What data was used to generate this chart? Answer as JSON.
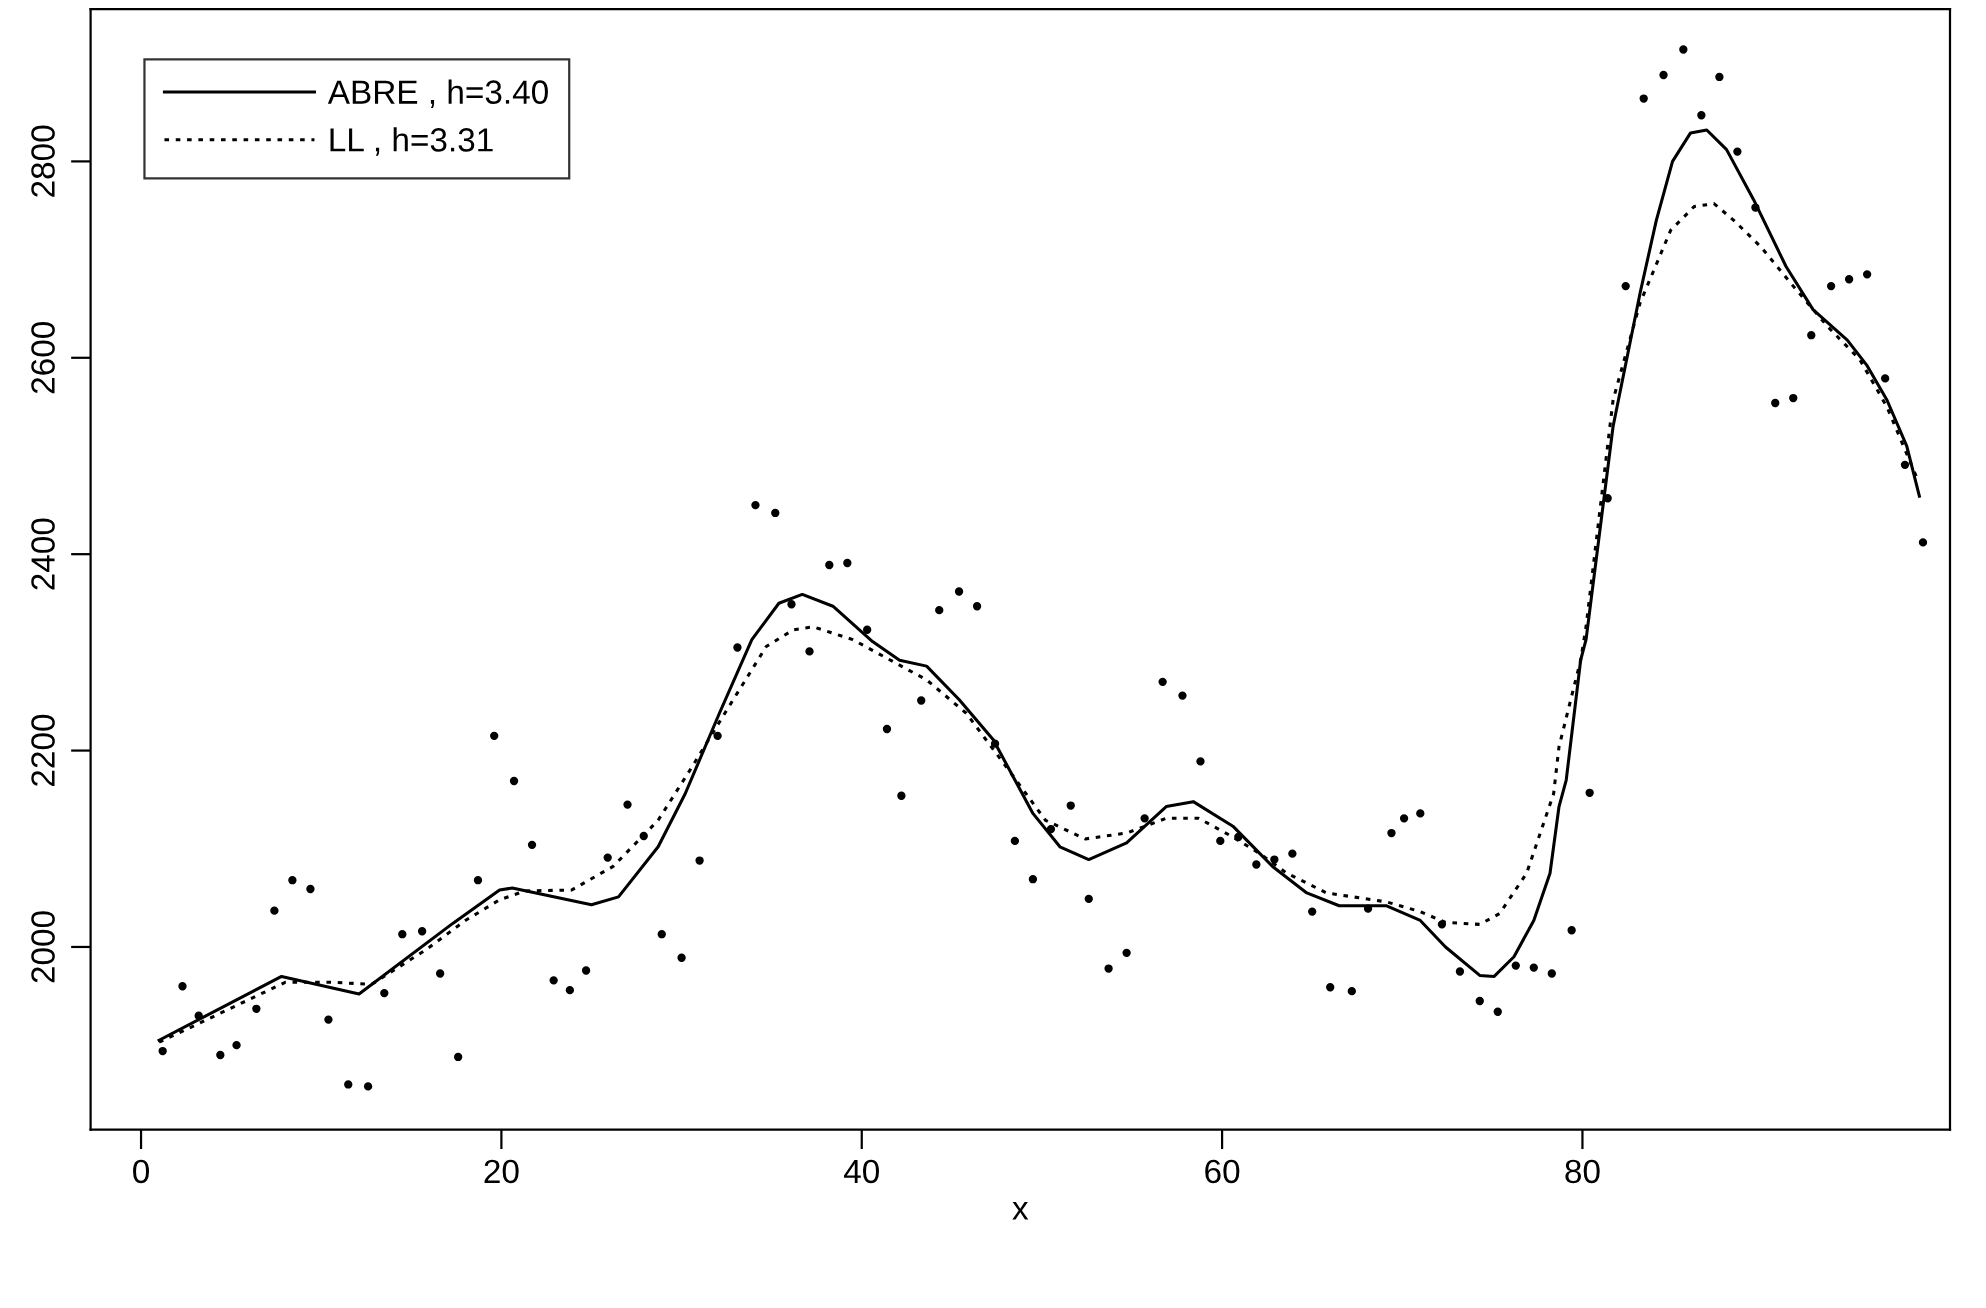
{
  "chart_data": {
    "type": "scatter",
    "xlabel": "x",
    "xlim": [
      -2.8,
      100.4
    ],
    "ylim": [
      1814,
      2955
    ],
    "xticks": [
      0,
      20,
      40,
      60,
      80
    ],
    "yticks": [
      2000,
      2200,
      2400,
      2600,
      2800
    ],
    "grid": false,
    "legend": "top left",
    "series": [
      {
        "color": "#000000",
        "marker": "circle",
        "x": [
          1.2,
          2.3,
          3.2,
          4.4,
          5.3,
          6.4,
          7.4,
          8.4,
          9.4,
          10.4,
          11.5,
          12.6,
          13.5,
          14.5,
          15.6,
          16.6,
          17.6,
          18.7,
          19.6,
          20.7,
          21.7,
          22.9,
          23.8,
          24.7,
          25.9,
          27.0,
          27.9,
          28.9,
          30.0,
          31.0,
          32.0,
          33.1,
          34.1,
          35.2,
          36.1,
          37.1,
          38.2,
          39.2,
          40.3,
          41.4,
          42.2,
          43.3,
          44.3,
          45.4,
          46.4,
          47.4,
          48.5,
          49.5,
          50.5,
          51.6,
          52.6,
          53.7,
          54.7,
          55.7,
          56.7,
          57.8,
          58.8,
          59.9,
          60.9,
          61.9,
          62.9,
          63.9,
          65.0,
          66.0,
          67.2,
          68.1,
          69.4,
          70.1,
          71.0,
          72.2,
          73.2,
          74.3,
          75.3,
          76.3,
          77.3,
          78.3,
          79.4,
          80.4,
          81.4,
          82.4,
          83.4,
          84.5,
          85.6,
          86.6,
          87.6,
          88.6,
          89.6,
          90.7,
          91.7,
          92.7,
          93.8,
          94.8,
          95.8,
          96.8,
          97.9,
          98.9
        ],
        "values": [
          1894,
          1960,
          1930,
          1890,
          1900,
          1937,
          2037,
          2068,
          2059,
          1926,
          1860,
          1858,
          1953,
          2013,
          2016,
          1973,
          1888,
          2068,
          2215,
          2169,
          2104,
          1966,
          1956,
          1976,
          2091,
          2145,
          2113,
          2013,
          1989,
          2088,
          2215,
          2305,
          2450,
          2442,
          2349,
          2301,
          2389,
          2391,
          2323,
          2222,
          2154,
          2251,
          2343,
          2362,
          2347,
          2207,
          2108,
          2069,
          2120,
          2144,
          2049,
          1978,
          1994,
          2131,
          2270,
          2256,
          2189,
          2108,
          2112,
          2084,
          2089,
          2095,
          2036,
          1959,
          1955,
          2039,
          2116,
          2131,
          2136,
          2023,
          1975,
          1945,
          1934,
          1981,
          1979,
          1973,
          2017,
          2157,
          2457,
          2673,
          2864,
          2888,
          2914,
          2847,
          2886,
          2810,
          2753,
          2554,
          2559,
          2623,
          2673,
          2680,
          2685,
          2579,
          2491,
          2412
        ]
      },
      {
        "type": "line",
        "name": "ABRE , h=3.40",
        "color": "#000000",
        "line_style": "solid",
        "marker": "none",
        "x": [
          1.0,
          7.8,
          12.1,
          17.3,
          19.9,
          20.6,
          25.0,
          26.5,
          28.7,
          30.2,
          32.1,
          33.9,
          35.4,
          36.7,
          38.4,
          40.6,
          42.1,
          43.6,
          45.4,
          47.3,
          49.5,
          51.0,
          52.6,
          54.7,
          56.9,
          58.4,
          60.6,
          62.1,
          62.8,
          64.7,
          66.5,
          69.1,
          71.0,
          72.4,
          74.3,
          75.1,
          76.2,
          77.3,
          78.2,
          78.7,
          79.1,
          79.9,
          80.2,
          81.7,
          83.2,
          84.1,
          85.0,
          86.0,
          86.9,
          88.0,
          89.5,
          91.3,
          92.8,
          94.7,
          95.8,
          96.9,
          98.0,
          98.7
        ],
        "values": [
          1905,
          1970,
          1952,
          2024,
          2058,
          2060,
          2043,
          2051,
          2102,
          2156,
          2238,
          2313,
          2350,
          2359,
          2347,
          2311,
          2292,
          2286,
          2252,
          2211,
          2136,
          2102,
          2089,
          2106,
          2143,
          2148,
          2123,
          2095,
          2082,
          2055,
          2042,
          2042,
          2027,
          2000,
          1971,
          1970,
          1990,
          2027,
          2075,
          2143,
          2170,
          2292,
          2313,
          2530,
          2666,
          2740,
          2800,
          2829,
          2832,
          2812,
          2761,
          2693,
          2649,
          2618,
          2592,
          2557,
          2510,
          2459
        ]
      },
      {
        "type": "line",
        "name": "LL , h=3.31",
        "color": "#000000",
        "line_style": "dotted",
        "marker": "none",
        "x": [
          1.0,
          3.2,
          8.0,
          10.6,
          12.8,
          15.8,
          18.0,
          19.9,
          21.3,
          23.9,
          26.2,
          28.7,
          30.6,
          32.4,
          34.7,
          36.2,
          37.3,
          39.5,
          41.9,
          43.6,
          45.8,
          48.0,
          50.2,
          52.4,
          54.7,
          56.9,
          58.7,
          60.6,
          62.1,
          63.6,
          65.8,
          69.1,
          71.0,
          72.4,
          74.3,
          75.4,
          76.9,
          78.4,
          78.7,
          79.9,
          80.2,
          81.7,
          83.2,
          84.9,
          86.2,
          87.3,
          88.4,
          89.9,
          91.7,
          93.6,
          95.4,
          96.9,
          98.6
        ],
        "values": [
          1903,
          1922,
          1964,
          1964,
          1962,
          1997,
          2027,
          2048,
          2057,
          2058,
          2082,
          2129,
          2184,
          2238,
          2306,
          2323,
          2326,
          2313,
          2289,
          2272,
          2238,
          2184,
          2129,
          2110,
          2116,
          2131,
          2131,
          2112,
          2095,
          2075,
          2055,
          2046,
          2036,
          2025,
          2023,
          2034,
          2075,
          2156,
          2204,
          2292,
          2326,
          2557,
          2656,
          2730,
          2754,
          2757,
          2740,
          2713,
          2673,
          2632,
          2598,
          2550,
          2476
        ]
      }
    ]
  }
}
